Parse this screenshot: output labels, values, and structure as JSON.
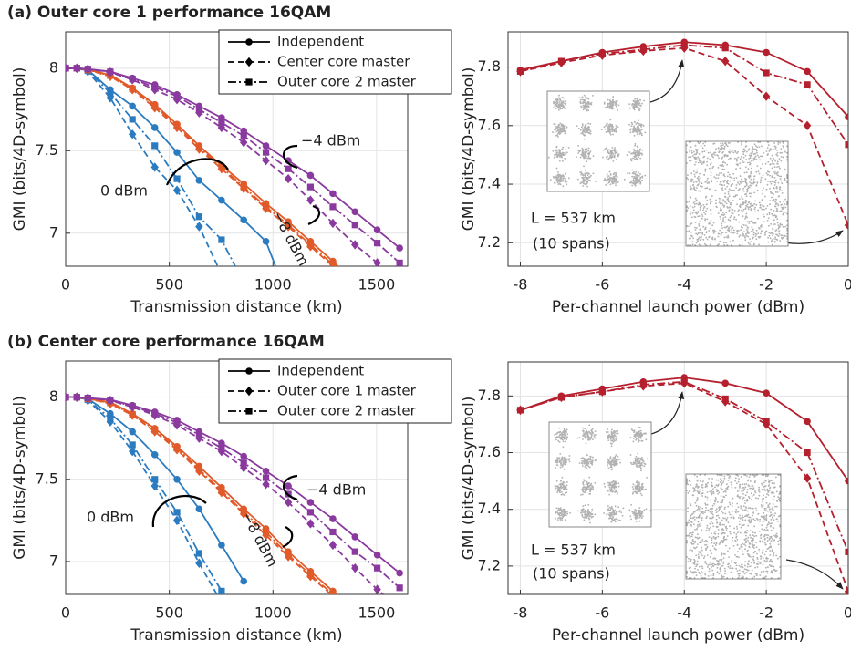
{
  "chart_data": [
    {
      "type": "line",
      "title": "(a) Outer core 1 performance 16QAM",
      "x_label": "Transmission distance (km)",
      "y_label": "GMI (bits/4D-symbol)",
      "x": [
        0,
        54,
        107,
        215,
        322,
        430,
        537,
        644,
        752,
        859,
        966,
        1074,
        1181,
        1289,
        1396,
        1503,
        1611
      ],
      "xlim": [
        0,
        1650
      ],
      "xticks": [
        0,
        500,
        1000,
        1500
      ],
      "ylim": [
        6.8,
        8.22
      ],
      "yticks": [
        7,
        7.5,
        8
      ],
      "grid": true,
      "legend": "upper right",
      "series": [
        {
          "name": "Independent",
          "color": "#2a7bbf",
          "dash": "solid",
          "marker": "circle",
          "values": [
            8,
            8,
            7.99,
            7.87,
            7.77,
            7.64,
            7.49,
            7.32,
            7.2,
            7.08,
            6.95,
            6.6,
            null,
            null,
            null,
            null,
            null
          ]
        },
        {
          "name": "Center core master",
          "color": "#2a7bbf",
          "dash": "dashed",
          "marker": "diamond",
          "values": [
            8,
            8,
            7.98,
            7.82,
            7.6,
            7.4,
            7.26,
            7.04,
            6.75,
            null,
            null,
            null,
            null,
            null,
            null,
            null,
            null
          ]
        },
        {
          "name": "Outer core 2 master",
          "color": "#2a7bbf",
          "dash": "dashdot",
          "marker": "square",
          "values": [
            8,
            8,
            7.985,
            7.85,
            7.69,
            7.53,
            7.33,
            7.1,
            6.96,
            6.7,
            null,
            null,
            null,
            null,
            null,
            null,
            null
          ]
        },
        {
          "name": "Independent",
          "color": "#e05a2a",
          "dash": "solid",
          "marker": "circle",
          "values": [
            8,
            8,
            7.99,
            7.96,
            7.88,
            7.78,
            7.66,
            7.53,
            7.41,
            7.3,
            7.18,
            7.07,
            6.95,
            6.83,
            6.7,
            null,
            null
          ]
        },
        {
          "name": "Center core master",
          "color": "#e05a2a",
          "dash": "dashed",
          "marker": "diamond",
          "values": [
            8,
            8,
            7.99,
            7.95,
            7.87,
            7.76,
            7.64,
            7.51,
            7.39,
            7.27,
            7.15,
            7.04,
            6.92,
            6.8,
            6.67,
            null,
            null
          ]
        },
        {
          "name": "Outer core 2 master",
          "color": "#e05a2a",
          "dash": "dashdot",
          "marker": "square",
          "values": [
            8,
            8,
            7.99,
            7.955,
            7.875,
            7.77,
            7.65,
            7.52,
            7.4,
            7.28,
            7.16,
            7.05,
            6.93,
            6.81,
            6.68,
            null,
            null
          ]
        },
        {
          "name": "Independent",
          "color": "#8a3a9e",
          "dash": "solid",
          "marker": "circle",
          "values": [
            8,
            8,
            7.995,
            7.98,
            7.94,
            7.9,
            7.84,
            7.77,
            7.7,
            7.62,
            7.53,
            7.44,
            7.35,
            7.24,
            7.13,
            7.02,
            6.91
          ]
        },
        {
          "name": "Center core master",
          "color": "#8a3a9e",
          "dash": "dashed",
          "marker": "diamond",
          "values": [
            8,
            8,
            7.995,
            7.975,
            7.93,
            7.87,
            7.81,
            7.73,
            7.64,
            7.55,
            7.44,
            7.33,
            7.2,
            7.06,
            6.93,
            6.82,
            6.7
          ]
        },
        {
          "name": "Outer core 2 master",
          "color": "#8a3a9e",
          "dash": "dashdot",
          "marker": "square",
          "values": [
            8,
            8,
            7.995,
            7.978,
            7.935,
            7.885,
            7.83,
            7.75,
            7.67,
            7.59,
            7.49,
            7.39,
            7.28,
            7.16,
            7.05,
            6.94,
            6.82
          ]
        }
      ],
      "annotations": [
        "0 dBm",
        "−4 dBm",
        "−8 dBm"
      ]
    },
    {
      "type": "line",
      "x_label": "Per-channel launch power (dBm)",
      "y_label": "GMI (bits/4D-symbol)",
      "x": [
        -8,
        -7,
        -6,
        -5,
        -4,
        -3,
        -2,
        -1,
        0
      ],
      "xlim": [
        -8.3,
        0
      ],
      "xticks": [
        -8,
        -6,
        -4,
        -2,
        0
      ],
      "ylim": [
        7.12,
        7.92
      ],
      "yticks": [
        7.2,
        7.4,
        7.6,
        7.8
      ],
      "grid": true,
      "series": [
        {
          "color": "#b5202e",
          "dash": "solid",
          "marker": "circle",
          "values": [
            7.79,
            7.82,
            7.85,
            7.87,
            7.885,
            7.875,
            7.85,
            7.785,
            7.63
          ]
        },
        {
          "color": "#b5202e",
          "dash": "dashed",
          "marker": "diamond",
          "values": [
            7.785,
            7.815,
            7.84,
            7.855,
            7.865,
            7.82,
            7.7,
            7.6,
            7.26
          ]
        },
        {
          "color": "#b5202e",
          "dash": "dashdot",
          "marker": "square",
          "values": [
            7.785,
            7.82,
            7.845,
            7.86,
            7.875,
            7.865,
            7.78,
            7.74,
            7.535
          ]
        }
      ],
      "annotations": [
        "L = 537 km",
        "(10 spans)"
      ]
    },
    {
      "type": "line",
      "title": "(b) Center core performance 16QAM",
      "x_label": "Transmission distance (km)",
      "y_label": "GMI (bits/4D-symbol)",
      "x": [
        0,
        54,
        107,
        215,
        322,
        430,
        537,
        644,
        752,
        859,
        966,
        1074,
        1181,
        1289,
        1396,
        1503,
        1611
      ],
      "xlim": [
        0,
        1650
      ],
      "xticks": [
        0,
        500,
        1000,
        1500
      ],
      "ylim": [
        6.8,
        8.22
      ],
      "yticks": [
        7,
        7.5,
        8
      ],
      "grid": true,
      "legend": "upper right",
      "series": [
        {
          "name": "Independent",
          "color": "#2a7bbf",
          "dash": "solid",
          "marker": "circle",
          "values": [
            8,
            8,
            7.99,
            7.9,
            7.79,
            7.65,
            7.5,
            7.32,
            7.1,
            6.88,
            null,
            null,
            null,
            null,
            null,
            null,
            null
          ]
        },
        {
          "name": "Outer core 1 master",
          "color": "#2a7bbf",
          "dash": "dashed",
          "marker": "diamond",
          "values": [
            8,
            8,
            7.98,
            7.85,
            7.67,
            7.46,
            7.25,
            6.99,
            6.75,
            null,
            null,
            null,
            null,
            null,
            null,
            null,
            null
          ]
        },
        {
          "name": "Outer core 2 master",
          "color": "#2a7bbf",
          "dash": "dashdot",
          "marker": "square",
          "values": [
            8,
            8,
            7.985,
            7.87,
            7.71,
            7.5,
            7.3,
            7.05,
            6.82,
            null,
            null,
            null,
            null,
            null,
            null,
            null,
            null
          ]
        },
        {
          "name": "Independent",
          "color": "#e05a2a",
          "dash": "solid",
          "marker": "circle",
          "values": [
            8,
            8,
            7.99,
            7.97,
            7.9,
            7.81,
            7.7,
            7.58,
            7.45,
            7.32,
            7.2,
            7.06,
            6.94,
            6.82,
            6.7,
            null,
            null
          ]
        },
        {
          "name": "Outer core 1 master",
          "color": "#e05a2a",
          "dash": "dashed",
          "marker": "diamond",
          "values": [
            8,
            8,
            7.99,
            7.96,
            7.89,
            7.79,
            7.68,
            7.55,
            7.42,
            7.29,
            7.16,
            7.03,
            6.91,
            6.79,
            6.67,
            null,
            null
          ]
        },
        {
          "name": "Outer core 2 master",
          "color": "#e05a2a",
          "dash": "dashdot",
          "marker": "square",
          "values": [
            8,
            8,
            7.99,
            7.965,
            7.895,
            7.8,
            7.69,
            7.56,
            7.43,
            7.3,
            7.18,
            7.04,
            6.92,
            6.8,
            6.68,
            null,
            null
          ]
        },
        {
          "name": "Independent",
          "color": "#8a3a9e",
          "dash": "solid",
          "marker": "circle",
          "values": [
            8,
            8,
            7.995,
            7.985,
            7.95,
            7.91,
            7.86,
            7.79,
            7.72,
            7.64,
            7.55,
            7.46,
            7.36,
            7.26,
            7.15,
            7.04,
            6.93
          ]
        },
        {
          "name": "Outer core 1 master",
          "color": "#8a3a9e",
          "dash": "dashed",
          "marker": "diamond",
          "values": [
            8,
            8,
            7.995,
            7.98,
            7.94,
            7.89,
            7.83,
            7.75,
            7.67,
            7.57,
            7.47,
            7.36,
            7.23,
            7.1,
            6.96,
            6.83,
            6.72
          ]
        },
        {
          "name": "Outer core 2 master",
          "color": "#8a3a9e",
          "dash": "dashdot",
          "marker": "square",
          "values": [
            8,
            8,
            7.995,
            7.982,
            7.945,
            7.9,
            7.845,
            7.77,
            7.69,
            7.6,
            7.51,
            7.41,
            7.3,
            7.18,
            7.06,
            6.96,
            6.84
          ]
        }
      ],
      "annotations": [
        "0 dBm",
        "−4 dBm",
        "−8 dBm"
      ]
    },
    {
      "type": "line",
      "x_label": "Per-channel launch power (dBm)",
      "y_label": "GMI (bits/4D-symbol)",
      "x": [
        -8,
        -7,
        -6,
        -5,
        -4,
        -3,
        -2,
        -1,
        0
      ],
      "xlim": [
        -8.3,
        0
      ],
      "xticks": [
        -8,
        -6,
        -4,
        -2,
        0
      ],
      "ylim": [
        7.1,
        7.92
      ],
      "yticks": [
        7.2,
        7.4,
        7.6,
        7.8
      ],
      "grid": true,
      "series": [
        {
          "color": "#b5202e",
          "dash": "solid",
          "marker": "circle",
          "values": [
            7.75,
            7.8,
            7.825,
            7.85,
            7.865,
            7.845,
            7.81,
            7.71,
            7.5
          ]
        },
        {
          "color": "#b5202e",
          "dash": "dashed",
          "marker": "diamond",
          "values": [
            7.75,
            7.795,
            7.815,
            7.835,
            7.845,
            7.78,
            7.7,
            7.51,
            7.11
          ]
        },
        {
          "color": "#b5202e",
          "dash": "dashdot",
          "marker": "square",
          "values": [
            7.75,
            7.795,
            7.815,
            7.84,
            7.85,
            7.79,
            7.71,
            7.6,
            7.25
          ]
        }
      ],
      "annotations": [
        "L = 537 km",
        "(10 spans)"
      ]
    }
  ]
}
